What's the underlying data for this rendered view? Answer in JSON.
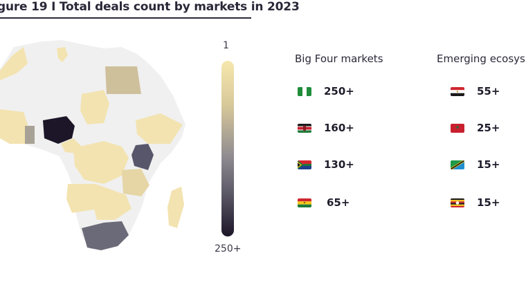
{
  "title": "gure 19 I Total deals count by markets in 2023",
  "colors": {
    "scale_low": "#f6e7ad",
    "scale_high": "#1c1628",
    "no_data": "#f0f0f0",
    "nigeria": "#1c1628",
    "kenya": "#58566a",
    "south_africa": "#6b6a78",
    "ghana": "#a8a296",
    "egypt": "#cfc09c",
    "others_low": "#f3e3b0"
  },
  "scale": {
    "min_label": "1",
    "max_label": "250+"
  },
  "legend": {
    "big_four": {
      "heading": "Big Four markets",
      "items": [
        {
          "flag": "nigeria-flag-icon",
          "count": "250+"
        },
        {
          "flag": "kenya-flag-icon",
          "count": "160+"
        },
        {
          "flag": "south-africa-flag-icon",
          "count": "130+"
        },
        {
          "flag": "ghana-flag-icon",
          "count": "65+"
        }
      ]
    },
    "emerging": {
      "heading": "Emerging ecosys",
      "items": [
        {
          "flag": "egypt-flag-icon",
          "count": "55+"
        },
        {
          "flag": "morocco-flag-icon",
          "count": "25+"
        },
        {
          "flag": "tanzania-flag-icon",
          "count": "15+"
        },
        {
          "flag": "uganda-flag-icon",
          "count": "15+"
        }
      ]
    }
  },
  "chart_data": {
    "type": "choropleth-map",
    "title": "gure 19 I Total deals count by markets in 2023",
    "color_scale": {
      "min": "1",
      "max": "250+"
    },
    "groups": [
      {
        "name": "Big Four markets",
        "entries": [
          {
            "country": "Nigeria",
            "deals": "250+"
          },
          {
            "country": "Kenya",
            "deals": "160+"
          },
          {
            "country": "South Africa",
            "deals": "130+"
          },
          {
            "country": "Ghana",
            "deals": "65+"
          }
        ]
      },
      {
        "name": "Emerging ecosys",
        "entries": [
          {
            "country": "Egypt",
            "deals": "55+"
          },
          {
            "country": "Morocco",
            "deals": "25+"
          },
          {
            "country": "Tanzania",
            "deals": "15+"
          },
          {
            "country": "Uganda",
            "deals": "15+"
          }
        ]
      }
    ]
  }
}
